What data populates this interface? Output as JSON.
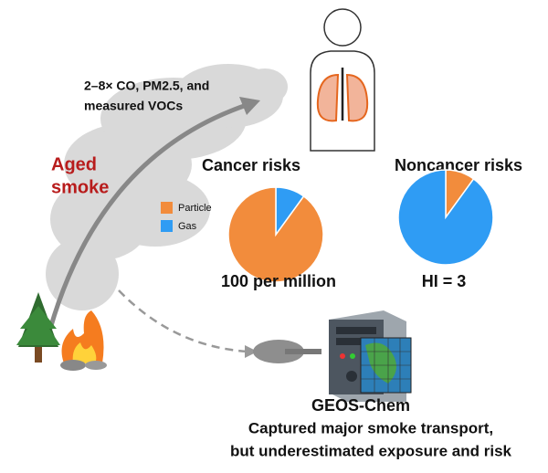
{
  "emission_note": [
    "2–8× CO, PM2.5, and",
    "measured VOCs"
  ],
  "smoke_label": [
    "Aged",
    "smoke"
  ],
  "legend": [
    {
      "name": "Particle",
      "color": "#f28c3c"
    },
    {
      "name": "Gas",
      "color": "#2f9cf4"
    }
  ],
  "pies": [
    {
      "type": "pie",
      "title": "Cancer risks",
      "categories": [
        "Gas",
        "Particle"
      ],
      "values": [
        10,
        90
      ],
      "caption": "100 per million"
    },
    {
      "type": "pie",
      "title": "Noncancer risks",
      "categories": [
        "Particle",
        "Gas"
      ],
      "values": [
        10,
        90
      ],
      "caption": "HI = 3"
    }
  ],
  "model": {
    "name": "GEOS-Chem",
    "finding": [
      "Captured major smoke transport,",
      "but underestimated exposure and risk"
    ]
  }
}
